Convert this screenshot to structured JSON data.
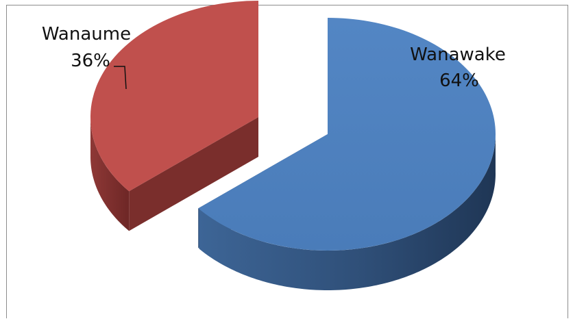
{
  "chart_data": {
    "type": "pie",
    "style": "3d-exploded",
    "slices": [
      {
        "label": "Wanawake",
        "value": 64,
        "percent_label": "64%",
        "color": "#4f81bd"
      },
      {
        "label": "Wanaume",
        "value": 36,
        "percent_label": "36%",
        "color": "#c0504d"
      }
    ]
  }
}
